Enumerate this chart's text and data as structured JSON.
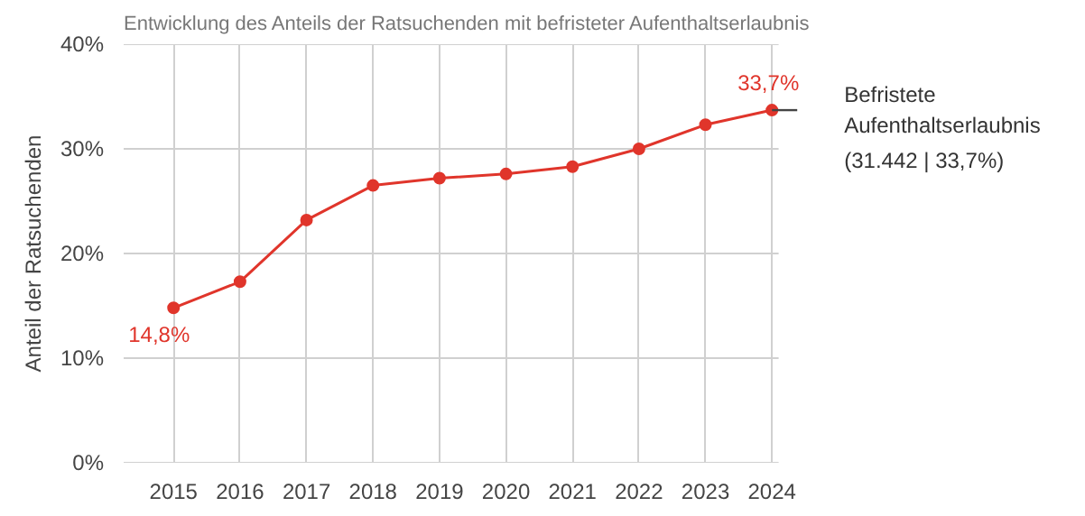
{
  "chart_data": {
    "type": "line",
    "title": "Entwicklung des Anteils der Ratsuchenden mit befristeter Aufenthaltserlaubnis",
    "ylabel": "Anteil der Ratsuchenden",
    "categories": [
      "2015",
      "2016",
      "2017",
      "2018",
      "2019",
      "2020",
      "2021",
      "2022",
      "2023",
      "2024"
    ],
    "series": [
      {
        "name": "Befristete Aufenthaltserlaubnis",
        "color": "#e0352b",
        "values": [
          14.8,
          17.3,
          23.2,
          26.5,
          27.2,
          27.6,
          28.3,
          30.0,
          32.3,
          33.7
        ],
        "value_labels": [
          "14,8%",
          null,
          null,
          null,
          null,
          null,
          null,
          null,
          null,
          "33,7%"
        ]
      }
    ],
    "annotations": [
      "(31.442 | 33,7%)"
    ],
    "ylim": [
      0,
      40
    ],
    "yticks": [
      {
        "value": 0,
        "label": "0%"
      },
      {
        "value": 10,
        "label": "10%"
      },
      {
        "value": 20,
        "label": "20%"
      },
      {
        "value": 30,
        "label": "30%"
      },
      {
        "value": 40,
        "label": "40%"
      }
    ],
    "grid": true,
    "marker": "circle",
    "line_style": "solid",
    "legend": false
  }
}
